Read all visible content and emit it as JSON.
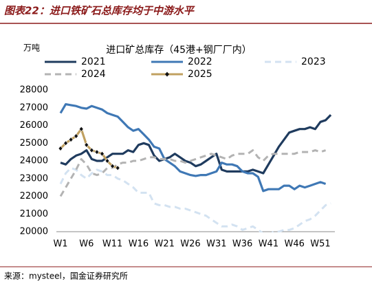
{
  "header": "图表22：进口铁矿石总库存均于中游水平",
  "source": "来源：mysteel，国金证券研究所",
  "chart_data": {
    "type": "line",
    "title": "进口矿总库存（45港+钢厂厂内）",
    "y_unit": "万吨",
    "categories": [
      "W1",
      null,
      null,
      null,
      null,
      "W6",
      null,
      null,
      null,
      null,
      "W11",
      null,
      null,
      null,
      null,
      "W16",
      null,
      null,
      null,
      null,
      "W21",
      null,
      null,
      null,
      null,
      "W26",
      null,
      null,
      null,
      null,
      "W31",
      null,
      null,
      null,
      null,
      "W36",
      null,
      null,
      null,
      null,
      "W41",
      null,
      null,
      null,
      null,
      "W46",
      null,
      null,
      null,
      null,
      "W51",
      null,
      null
    ],
    "ylim": [
      20000,
      28000
    ],
    "yticks": [
      20000,
      21000,
      22000,
      23000,
      24000,
      25000,
      26000,
      27000,
      28000
    ],
    "series": [
      {
        "name": "2021",
        "color": "#1f3b5e",
        "dashed": false,
        "markers": false,
        "values": [
          23900,
          23800,
          24100,
          24300,
          24400,
          24600,
          24100,
          24000,
          24000,
          24200,
          24400,
          24400,
          24400,
          24600,
          24500,
          24900,
          25000,
          24900,
          24300,
          24000,
          24100,
          24200,
          24400,
          24200,
          24000,
          23900,
          23700,
          23800,
          24000,
          24200,
          24400,
          23500,
          23400,
          23400,
          23400,
          23400,
          23400,
          23500,
          23400,
          23300,
          23800,
          24300,
          24800,
          25200,
          25600,
          25700,
          25800,
          25800,
          25900,
          25800,
          26200,
          26300,
          26600
        ]
      },
      {
        "name": "2022",
        "color": "#3f78b5",
        "dashed": false,
        "markers": false,
        "values": [
          26700,
          27200,
          27150,
          27100,
          27000,
          26950,
          27100,
          27000,
          26900,
          26700,
          26600,
          26500,
          26200,
          25900,
          25700,
          25800,
          25500,
          25200,
          24800,
          24700,
          24100,
          23900,
          23700,
          23400,
          23300,
          23200,
          23150,
          23200,
          23200,
          23300,
          23400,
          23900,
          23800,
          23800,
          23700,
          23400,
          23300,
          23300,
          23100,
          22300,
          22400,
          22400,
          22400,
          22600,
          22600,
          22400,
          22600,
          22500,
          22600,
          22700,
          22800,
          22700,
          null
        ]
      },
      {
        "name": "2023",
        "color": "#d3e2f1",
        "dashed": true,
        "markers": false,
        "values": [
          22700,
          23300,
          23600,
          23500,
          23200,
          23000,
          23300,
          23500,
          23400,
          23200,
          23200,
          23000,
          22900,
          22700,
          22500,
          22200,
          22200,
          22200,
          21600,
          21500,
          21500,
          21400,
          21400,
          21300,
          21300,
          21200,
          21100,
          21000,
          20900,
          20700,
          20500,
          20300,
          20300,
          20400,
          20300,
          20100,
          20200,
          20300,
          20100,
          19900,
          19800,
          20000,
          20000,
          20100,
          20100,
          20200,
          20400,
          20600,
          20700,
          20900,
          21200,
          21500,
          21600
        ]
      },
      {
        "name": "2024",
        "color": "#b3b3b3",
        "dashed": true,
        "markers": false,
        "values": [
          22000,
          22500,
          23000,
          23500,
          24100,
          23800,
          23300,
          23200,
          23300,
          23600,
          23600,
          23800,
          23900,
          23900,
          24000,
          24000,
          24100,
          24200,
          24200,
          24100,
          24100,
          24100,
          24000,
          24000,
          23900,
          24000,
          24100,
          24200,
          24300,
          24400,
          24300,
          24200,
          24100,
          24300,
          24400,
          24400,
          24400,
          24600,
          24200,
          24000,
          24300,
          24400,
          24400,
          24400,
          24400,
          24400,
          24500,
          24500,
          24500,
          24600,
          24500,
          24600,
          null
        ]
      },
      {
        "name": "2025",
        "color": "#c0a060",
        "dashed": false,
        "markers": true,
        "values": [
          24700,
          25000,
          25200,
          25400,
          25800,
          24900,
          24600,
          24500,
          24400,
          24000,
          23700,
          23600,
          null,
          null,
          null,
          null,
          null,
          null,
          null,
          null,
          null,
          null,
          null,
          null,
          null,
          null,
          null,
          null,
          null,
          null,
          null,
          null,
          null,
          null,
          null,
          null,
          null,
          null,
          null,
          null,
          null,
          null,
          null,
          null,
          null,
          null,
          null,
          null,
          null,
          null,
          null,
          null,
          null
        ]
      }
    ]
  }
}
